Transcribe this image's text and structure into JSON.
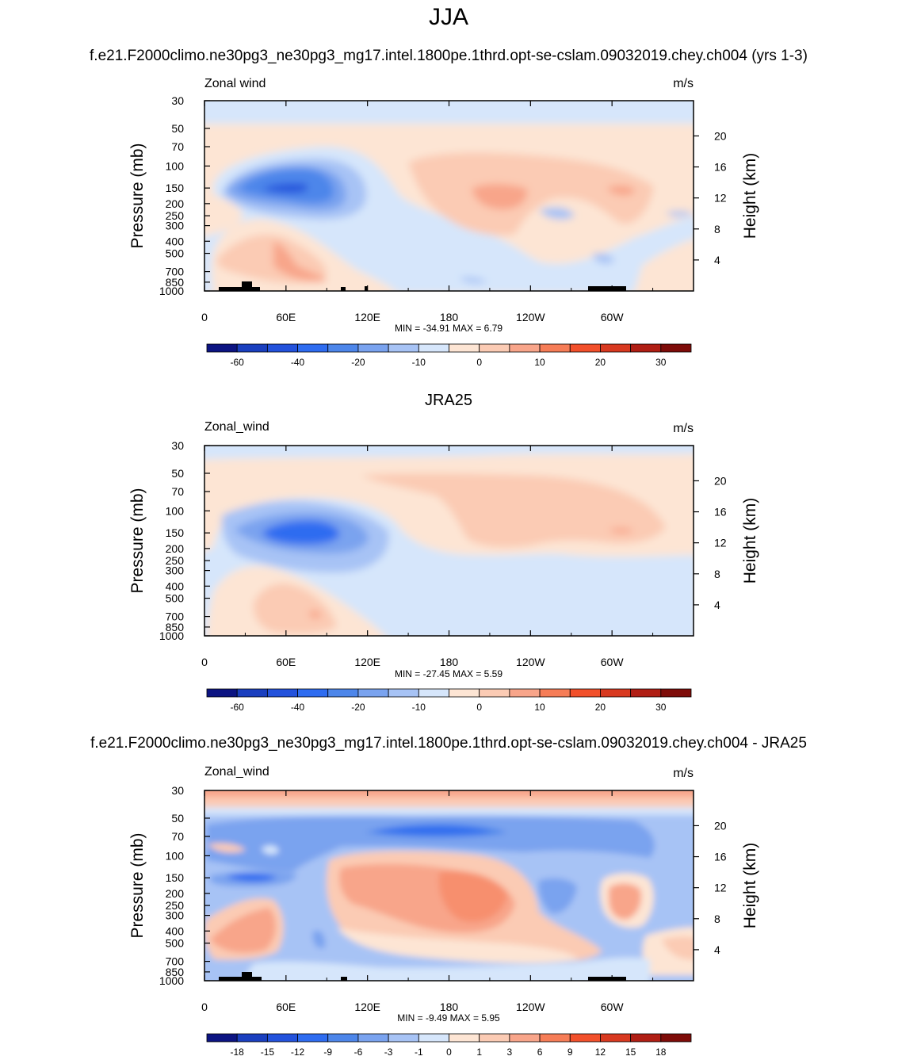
{
  "figure": {
    "title": "JJA",
    "case_label": "f.e21.F2000climo.ne30pg3_ne30pg3_mg17.intel.1800pe.1thrd.opt-se-cslam.09032019.chey.ch004 (yrs 1-3)",
    "obs_label": "JRA25",
    "diff_label": "f.e21.F2000climo.ne30pg3_ne30pg3_mg17.intel.1800pe.1thrd.opt-se-cslam.09032019.chey.ch004 - JRA25"
  },
  "chart_data": [
    {
      "type": "heatmap",
      "panel": "model",
      "corner_left": "Zonal wind",
      "corner_right": "m/s",
      "ylabel": "Pressure (mb)",
      "ylabel_right": "Height (km)",
      "x_ticks": [
        "0",
        "60E",
        "120E",
        "180",
        "120W",
        "60W"
      ],
      "x_tick_values": [
        0,
        60,
        120,
        180,
        240,
        300
      ],
      "xlim": [
        0,
        360
      ],
      "y_ticks": [
        "30",
        "50",
        "70",
        "100",
        "150",
        "200",
        "250",
        "300",
        "400",
        "500",
        "700",
        "850",
        "1000"
      ],
      "y_tick_values": [
        30,
        50,
        70,
        100,
        150,
        200,
        250,
        300,
        400,
        500,
        700,
        850,
        1000
      ],
      "ylim": [
        1000,
        30
      ],
      "y_scale": "log",
      "height_ticks": [
        "20",
        "16",
        "12",
        "8",
        "4"
      ],
      "height_tick_values": [
        20,
        16,
        12,
        8,
        4
      ],
      "min": -34.91,
      "max": 6.79,
      "min_max_text": "MIN = -34.91  MAX =  6.79",
      "levels": [
        -60,
        -50,
        -40,
        -30,
        -20,
        -15,
        -10,
        -5,
        0,
        5,
        10,
        15,
        20,
        25,
        30,
        40
      ],
      "colorbar_labels": [
        "-60",
        "-40",
        "-20",
        "-10",
        "0",
        "10",
        "20",
        "30"
      ],
      "colorbar_label_slots": [
        1,
        3,
        5,
        7,
        9,
        11,
        13,
        15
      ]
    },
    {
      "type": "heatmap",
      "panel": "obs",
      "corner_left": "Zonal_wind",
      "corner_right": "m/s",
      "ylabel": "Pressure (mb)",
      "ylabel_right": "Height (km)",
      "x_ticks": [
        "0",
        "60E",
        "120E",
        "180",
        "120W",
        "60W"
      ],
      "x_tick_values": [
        0,
        60,
        120,
        180,
        240,
        300
      ],
      "xlim": [
        0,
        360
      ],
      "y_ticks": [
        "30",
        "50",
        "70",
        "100",
        "150",
        "200",
        "250",
        "300",
        "400",
        "500",
        "700",
        "850",
        "1000"
      ],
      "y_tick_values": [
        30,
        50,
        70,
        100,
        150,
        200,
        250,
        300,
        400,
        500,
        700,
        850,
        1000
      ],
      "ylim": [
        1000,
        30
      ],
      "y_scale": "log",
      "height_ticks": [
        "20",
        "16",
        "12",
        "8",
        "4"
      ],
      "height_tick_values": [
        20,
        16,
        12,
        8,
        4
      ],
      "min": -27.45,
      "max": 5.59,
      "min_max_text": "MIN = -27.45  MAX =  5.59",
      "levels": [
        -60,
        -50,
        -40,
        -30,
        -20,
        -15,
        -10,
        -5,
        0,
        5,
        10,
        15,
        20,
        25,
        30,
        40
      ],
      "colorbar_labels": [
        "-60",
        "-40",
        "-20",
        "-10",
        "0",
        "10",
        "20",
        "30"
      ],
      "colorbar_label_slots": [
        1,
        3,
        5,
        7,
        9,
        11,
        13,
        15
      ]
    },
    {
      "type": "heatmap",
      "panel": "difference",
      "corner_left": "Zonal_wind",
      "corner_right": "m/s",
      "ylabel": "Pressure (mb)",
      "ylabel_right": "Height (km)",
      "x_ticks": [
        "0",
        "60E",
        "120E",
        "180",
        "120W",
        "60W"
      ],
      "x_tick_values": [
        0,
        60,
        120,
        180,
        240,
        300
      ],
      "xlim": [
        0,
        360
      ],
      "y_ticks": [
        "30",
        "50",
        "70",
        "100",
        "150",
        "200",
        "250",
        "300",
        "400",
        "500",
        "700",
        "850",
        "1000"
      ],
      "y_tick_values": [
        30,
        50,
        70,
        100,
        150,
        200,
        250,
        300,
        400,
        500,
        700,
        850,
        1000
      ],
      "ylim": [
        1000,
        30
      ],
      "y_scale": "log",
      "height_ticks": [
        "20",
        "16",
        "12",
        "8",
        "4"
      ],
      "height_tick_values": [
        20,
        16,
        12,
        8,
        4
      ],
      "min": -9.49,
      "max": 5.95,
      "min_max_text": "MIN =  -9.49  MAX =  5.95",
      "levels": [
        -21,
        -18,
        -15,
        -12,
        -9,
        -6,
        -3,
        -1,
        0,
        1,
        3,
        6,
        9,
        12,
        15,
        18
      ],
      "colorbar_labels": [
        "-18",
        "-15",
        "-12",
        "-9",
        "-6",
        "-3",
        "-1",
        "0",
        "1",
        "3",
        "6",
        "9",
        "12",
        "15",
        "18"
      ],
      "colorbar_label_slots": [
        1,
        2,
        3,
        4,
        5,
        6,
        7,
        8,
        9,
        10,
        11,
        12,
        13,
        14,
        15
      ]
    }
  ],
  "colorbar_colors": [
    "#0c1482",
    "#1a3fbf",
    "#2352dc",
    "#2e6cf0",
    "#4d86ea",
    "#7aa3ef",
    "#a7c3f5",
    "#d6e6fb",
    "#fde5d4",
    "#fbcbb4",
    "#f8a58a",
    "#f67d57",
    "#f2502b",
    "#d83920",
    "#b01e14",
    "#7e0c09"
  ]
}
